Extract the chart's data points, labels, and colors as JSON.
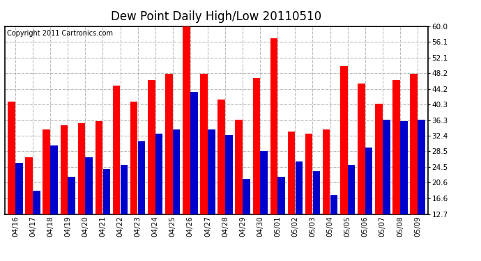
{
  "title": "Dew Point Daily High/Low 20110510",
  "copyright": "Copyright 2011 Cartronics.com",
  "categories": [
    "04/16",
    "04/17",
    "04/18",
    "04/19",
    "04/20",
    "04/21",
    "04/22",
    "04/23",
    "04/24",
    "04/25",
    "04/26",
    "04/27",
    "04/28",
    "04/29",
    "04/30",
    "05/01",
    "05/02",
    "05/03",
    "05/04",
    "05/05",
    "05/06",
    "05/07",
    "05/08",
    "05/09"
  ],
  "high_values": [
    41.0,
    27.0,
    34.0,
    35.0,
    35.5,
    36.0,
    45.0,
    41.0,
    46.5,
    48.0,
    60.0,
    48.0,
    41.5,
    36.5,
    47.0,
    57.0,
    33.5,
    33.0,
    34.0,
    50.0,
    45.5,
    40.5,
    46.5,
    48.0
  ],
  "low_values": [
    25.5,
    18.5,
    30.0,
    22.0,
    27.0,
    24.0,
    25.0,
    31.0,
    33.0,
    34.0,
    43.5,
    34.0,
    32.5,
    21.5,
    28.5,
    22.0,
    26.0,
    23.5,
    17.5,
    25.0,
    29.5,
    36.5,
    36.0,
    36.5
  ],
  "bar_color_high": "#ff0000",
  "bar_color_low": "#0000cc",
  "background_color": "#ffffff",
  "plot_bg_color": "#ffffff",
  "grid_color": "#bbbbbb",
  "yticks": [
    12.7,
    16.6,
    20.6,
    24.5,
    28.5,
    32.4,
    36.3,
    40.3,
    44.2,
    48.2,
    52.1,
    56.1,
    60.0
  ],
  "ylim": [
    12.7,
    60.0
  ],
  "title_fontsize": 12,
  "copyright_fontsize": 7,
  "tick_fontsize": 7.5,
  "bar_width": 0.42,
  "bar_gap": 0.01
}
